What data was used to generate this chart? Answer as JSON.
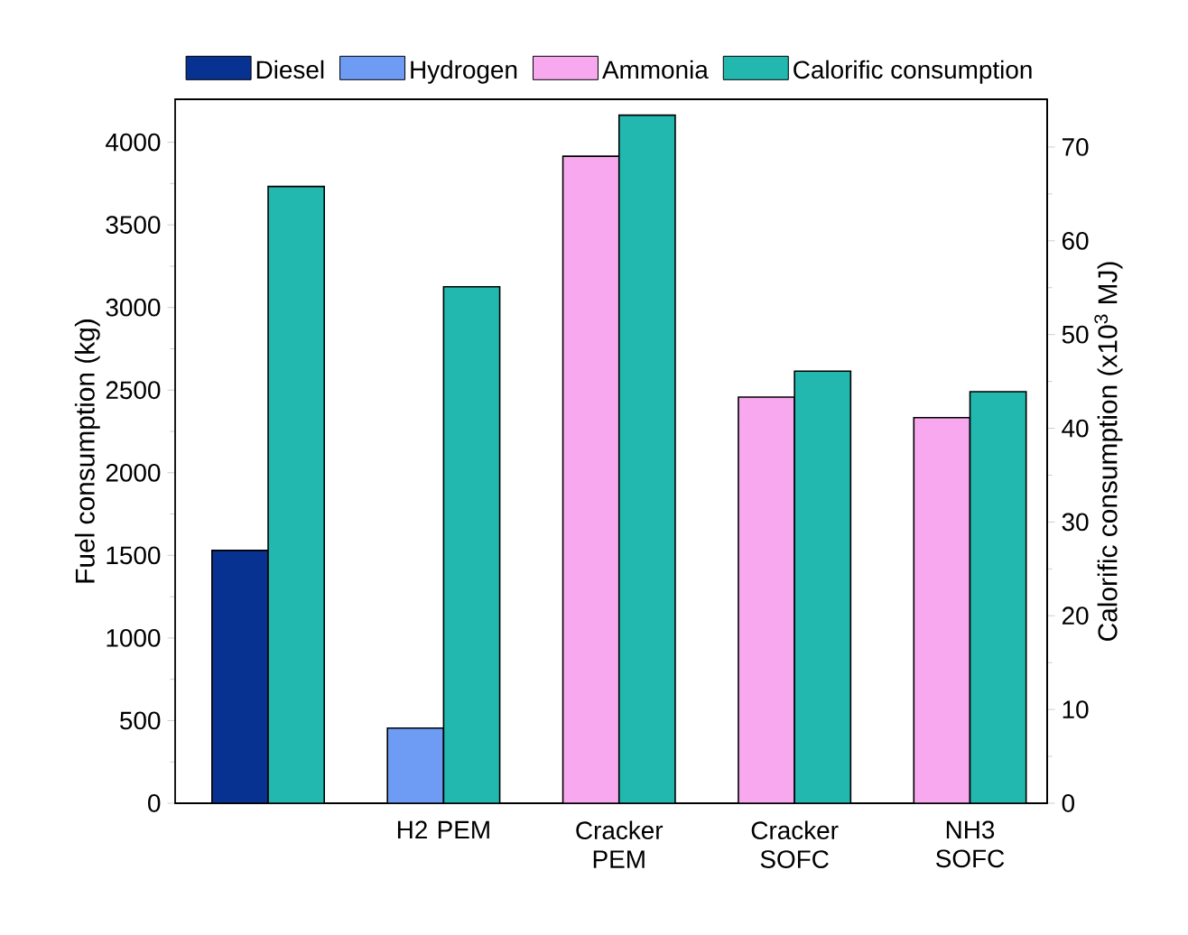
{
  "chart_data": {
    "type": "bar",
    "xlabel": null,
    "ylabel": "Fuel consumption (kg)",
    "y2label": "Calorific consumption (x10$^{3}$ MJ)",
    "categories": [
      null,
      "H2 PEM",
      "Cracker PEM",
      "Cracker SOFC",
      "NH3 SOFC"
    ],
    "series": [
      {
        "name": "Diesel",
        "color": "#083291",
        "values": [
          1530,
          null,
          null,
          null,
          null
        ]
      },
      {
        "name": "Hydrogen",
        "color": "#6e9cf5",
        "values": [
          null,
          455,
          null,
          null,
          null
        ]
      },
      {
        "name": "Ammonia",
        "color": "#f7a8ee",
        "values": [
          null,
          null,
          3915,
          2458,
          2333
        ]
      },
      {
        "name": "Calorific consumption",
        "color": "#22b8b0",
        "axis": "y2",
        "values": [
          65.8,
          55.1,
          73.4,
          46.1,
          43.9
        ]
      }
    ],
    "ylim": [
      0,
      4260
    ],
    "yticks": [
      0,
      500,
      1000,
      1500,
      2000,
      2500,
      3000,
      3500,
      4000
    ],
    "y2lim": [
      0,
      75.1
    ],
    "y2ticks": [
      0,
      10,
      20,
      30,
      40,
      50,
      60,
      70
    ],
    "legend": "top",
    "grid": false
  }
}
